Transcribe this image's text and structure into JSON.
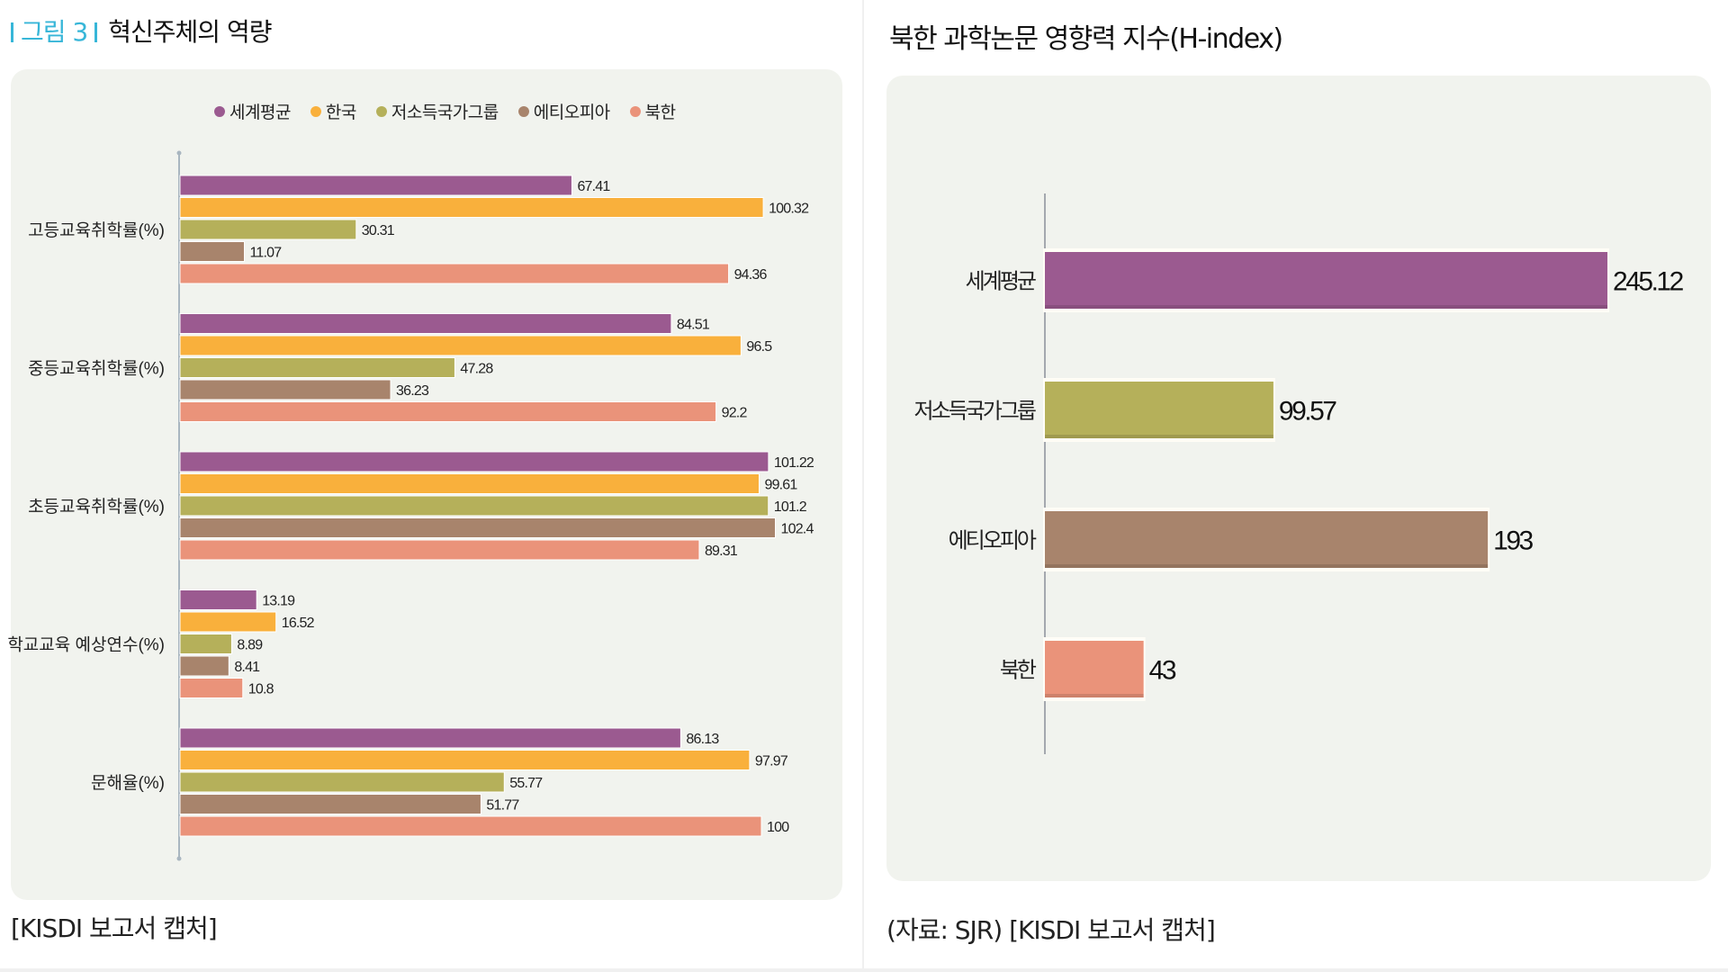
{
  "figure": {
    "tag_label": "그림 3",
    "title": "혁신주체의 역량",
    "caption": "[KISDI 보고서 캡처]"
  },
  "right_figure": {
    "title": "북한 과학논문 영향력 지수(H-index)",
    "caption": "(자료: SJR) [KISDI 보고서 캡처]"
  },
  "chart_data": [
    {
      "type": "bar",
      "orientation": "horizontal",
      "title": "혁신주체의 역량",
      "xlabel": "",
      "ylabel": "",
      "xlim": [
        0,
        110
      ],
      "grid": false,
      "legend_position": "top-center",
      "categories": [
        "고등교육취학률(%)",
        "중등교육취학률(%)",
        "초등교육취학률(%)",
        "학교교육 예상연수(%)",
        "문해율(%)"
      ],
      "series": [
        {
          "name": "세계평균",
          "color": "#9b5a90",
          "values": [
            67.41,
            84.51,
            101.22,
            13.19,
            86.13
          ]
        },
        {
          "name": "한국",
          "color": "#f9b03c",
          "values": [
            100.32,
            96.5,
            99.61,
            16.52,
            97.97
          ]
        },
        {
          "name": "저소득국가그룹",
          "color": "#b5b05a",
          "values": [
            30.31,
            47.28,
            101.2,
            8.89,
            55.77
          ]
        },
        {
          "name": "에티오피아",
          "color": "#a8846c",
          "values": [
            11.07,
            36.23,
            102.4,
            8.41,
            51.77
          ]
        },
        {
          "name": "북한",
          "color": "#ea937a",
          "values": [
            94.36,
            92.2,
            89.31,
            10.8,
            100
          ]
        }
      ],
      "value_labels": [
        [
          "67.41",
          "84.51",
          "101.22",
          "13.19",
          "86.13"
        ],
        [
          "100.32",
          "96.5",
          "99.61",
          "16.52",
          "97.97"
        ],
        [
          "30.31",
          "47.28",
          "101.2",
          "8.89",
          "55.77"
        ],
        [
          "11.07",
          "36.23",
          "102.4",
          "8.41",
          "51.77"
        ],
        [
          "94.36",
          "92.2",
          "89.31",
          "10.8",
          "100"
        ]
      ]
    },
    {
      "type": "bar",
      "orientation": "horizontal",
      "title": "북한 과학논문 영향력 지수(H-index)",
      "xlabel": "",
      "ylabel": "",
      "xlim": [
        0,
        290
      ],
      "grid": false,
      "categories": [
        "세계평균",
        "저소득국가그룹",
        "에티오피아",
        "북한"
      ],
      "values": [
        245.12,
        99.57,
        193,
        43
      ],
      "value_labels": [
        "245.12",
        "99.57",
        "193",
        "43"
      ],
      "colors": [
        "#9b5a90",
        "#b5b05a",
        "#a8846c",
        "#ea937a"
      ]
    }
  ]
}
